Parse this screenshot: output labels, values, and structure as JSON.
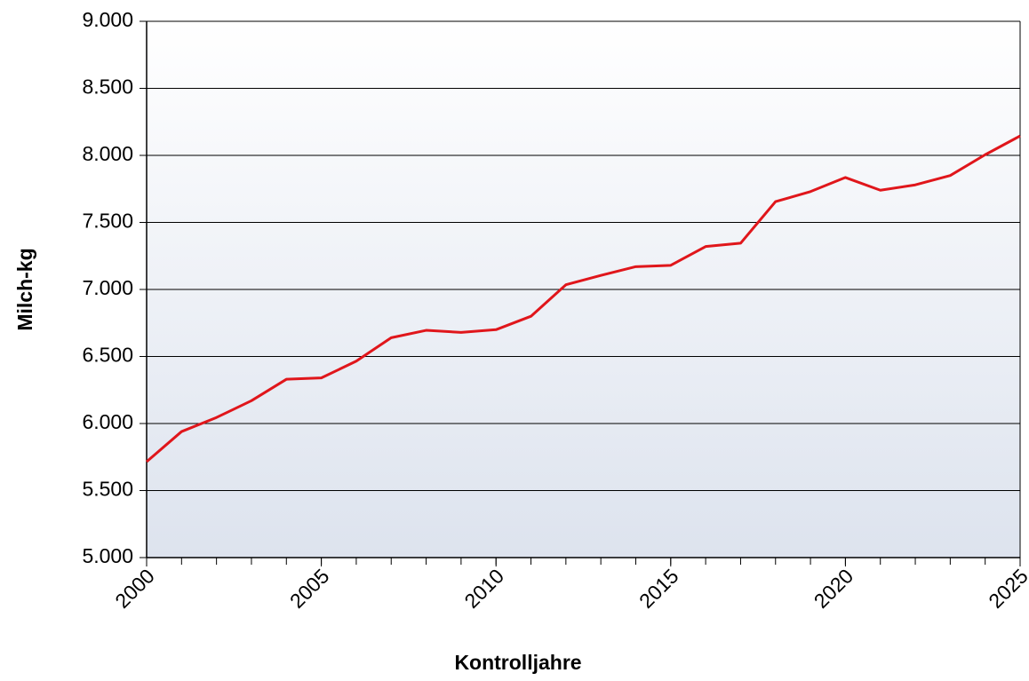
{
  "chart_data": {
    "type": "line",
    "xlabel": "Kontrolljahre",
    "ylabel": "Milch-kg",
    "x": [
      2000,
      2001,
      2002,
      2003,
      2004,
      2005,
      2006,
      2007,
      2008,
      2009,
      2010,
      2011,
      2012,
      2013,
      2014,
      2015,
      2016,
      2017,
      2018,
      2019,
      2020,
      2021,
      2022,
      2023,
      2024,
      2025
    ],
    "series": [
      {
        "name": "Milch-kg",
        "color": "#e0161b",
        "values": [
          5715,
          5940,
          6045,
          6170,
          6330,
          6340,
          6465,
          6640,
          6695,
          6680,
          6700,
          6800,
          7035,
          7105,
          7170,
          7180,
          7320,
          7345,
          7655,
          7730,
          7835,
          7740,
          7780,
          7850,
          8005,
          8145
        ]
      }
    ],
    "xlim": [
      2000,
      2025
    ],
    "xticks": [
      2000,
      2005,
      2010,
      2015,
      2020,
      2025
    ],
    "ylim": [
      5000,
      9000
    ],
    "yticks": [
      {
        "value": 5000,
        "label": "5.000"
      },
      {
        "value": 5500,
        "label": "5.500"
      },
      {
        "value": 6000,
        "label": "6.000"
      },
      {
        "value": 6500,
        "label": "6.500"
      },
      {
        "value": 7000,
        "label": "7.000"
      },
      {
        "value": 7500,
        "label": "7.500"
      },
      {
        "value": 8000,
        "label": "8.000"
      },
      {
        "value": 8500,
        "label": "8.500"
      },
      {
        "value": 9000,
        "label": "9.000"
      }
    ],
    "grid": true
  }
}
